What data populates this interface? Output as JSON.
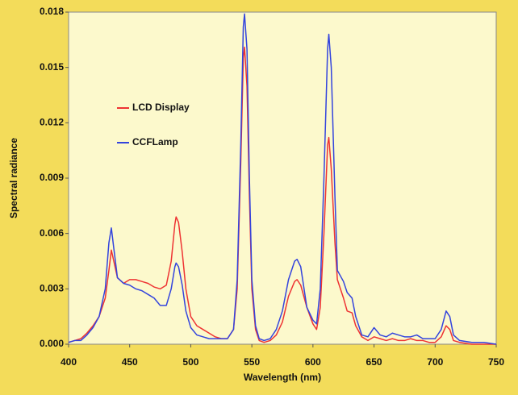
{
  "chart_data": {
    "type": "line",
    "x_label": "Wavelength (nm)",
    "y_label": "Spectral radiance",
    "x": [
      400,
      405,
      410,
      415,
      420,
      425,
      430,
      433,
      435,
      437,
      440,
      445,
      450,
      455,
      460,
      465,
      470,
      475,
      480,
      484,
      487,
      488,
      490,
      493,
      496,
      500,
      505,
      510,
      515,
      520,
      525,
      530,
      535,
      538,
      541,
      543,
      544,
      546,
      548,
      550,
      553,
      556,
      560,
      565,
      570,
      575,
      580,
      585,
      587,
      590,
      595,
      600,
      603,
      606,
      609,
      612,
      613,
      615,
      618,
      620,
      625,
      628,
      632,
      635,
      640,
      645,
      650,
      655,
      660,
      665,
      670,
      675,
      680,
      685,
      690,
      695,
      700,
      705,
      709,
      712,
      715,
      720,
      730,
      740,
      750
    ],
    "series": [
      {
        "name": "LCD Display",
        "color": "#ee3333",
        "values": [
          0.0001,
          0.0002,
          0.0003,
          0.0006,
          0.001,
          0.0015,
          0.0025,
          0.004,
          0.0051,
          0.0045,
          0.0036,
          0.0033,
          0.0035,
          0.0035,
          0.0034,
          0.0033,
          0.0031,
          0.003,
          0.0032,
          0.0045,
          0.0065,
          0.0069,
          0.0066,
          0.005,
          0.003,
          0.0015,
          0.001,
          0.0008,
          0.0006,
          0.0004,
          0.0003,
          0.0003,
          0.0008,
          0.003,
          0.01,
          0.0155,
          0.0161,
          0.014,
          0.008,
          0.003,
          0.0008,
          0.0002,
          0.0001,
          0.0002,
          0.0005,
          0.0012,
          0.0026,
          0.0034,
          0.0035,
          0.0032,
          0.002,
          0.0011,
          0.0008,
          0.002,
          0.006,
          0.0108,
          0.0112,
          0.0095,
          0.0055,
          0.0035,
          0.0025,
          0.0018,
          0.0017,
          0.001,
          0.0004,
          0.0002,
          0.0004,
          0.0003,
          0.0002,
          0.0003,
          0.0002,
          0.0002,
          0.0003,
          0.0002,
          0.0002,
          0.0001,
          0.0001,
          0.0004,
          0.001,
          0.0008,
          0.0002,
          0.0001,
          0,
          0,
          0
        ]
      },
      {
        "name": "CCFLamp",
        "color": "#3344dd",
        "values": [
          0.0001,
          0.0002,
          0.0002,
          0.0005,
          0.0009,
          0.0015,
          0.003,
          0.0055,
          0.0063,
          0.0052,
          0.0036,
          0.0033,
          0.0032,
          0.003,
          0.0029,
          0.0027,
          0.0025,
          0.0021,
          0.0021,
          0.003,
          0.0042,
          0.0044,
          0.0042,
          0.0032,
          0.0018,
          0.0009,
          0.0005,
          0.0004,
          0.0003,
          0.0003,
          0.0003,
          0.0003,
          0.0008,
          0.0035,
          0.011,
          0.0172,
          0.0179,
          0.016,
          0.009,
          0.0035,
          0.001,
          0.0003,
          0.0002,
          0.0003,
          0.0008,
          0.0018,
          0.0035,
          0.0045,
          0.0046,
          0.0042,
          0.002,
          0.0013,
          0.0011,
          0.003,
          0.009,
          0.016,
          0.0168,
          0.015,
          0.008,
          0.004,
          0.0034,
          0.0028,
          0.0025,
          0.0015,
          0.0005,
          0.0004,
          0.0009,
          0.0005,
          0.0004,
          0.0006,
          0.0005,
          0.0004,
          0.0004,
          0.0005,
          0.0003,
          0.0003,
          0.0003,
          0.0008,
          0.0018,
          0.0015,
          0.0005,
          0.0002,
          0.0001,
          0.0001,
          0
        ]
      }
    ],
    "xlim": [
      400,
      750
    ],
    "xticks": [
      400,
      450,
      500,
      550,
      600,
      650,
      700,
      750
    ],
    "ylim": [
      0,
      0.018
    ],
    "yticks": [
      {
        "value": 0,
        "label": "0.000"
      },
      {
        "value": 0.003,
        "label": "0.003"
      },
      {
        "value": 0.006,
        "label": "0.006"
      },
      {
        "value": 0.009,
        "label": "0.009"
      },
      {
        "value": 0.012,
        "label": "0.012"
      },
      {
        "value": 0.015,
        "label": "0.015"
      },
      {
        "value": 0.018,
        "label": "0.018"
      }
    ],
    "grid": false,
    "legend": "upper left"
  }
}
